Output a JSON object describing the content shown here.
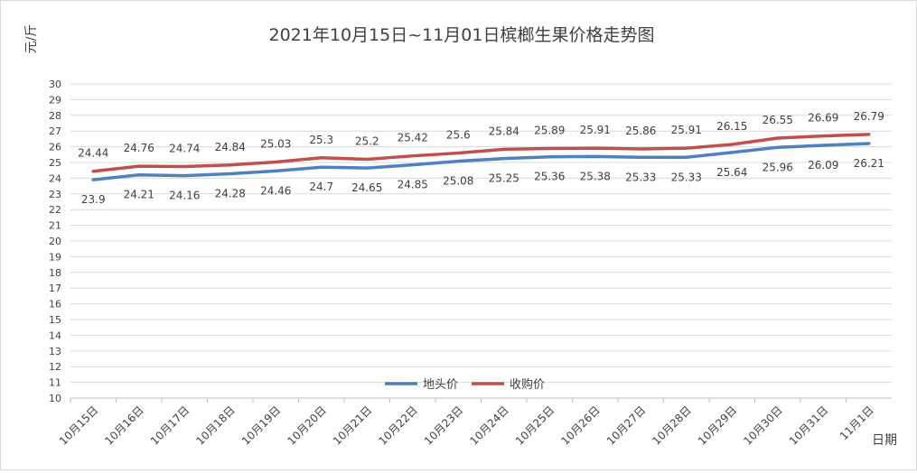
{
  "chart_data": {
    "type": "line",
    "title": "2021年10月15日~11月01日槟榔生果价格走势图",
    "ylabel": "元/斤",
    "xlabel": "日期",
    "ylim": [
      10,
      30
    ],
    "ytick_step": 1,
    "grid": true,
    "legend_position": "bottom-center",
    "categories": [
      "10月15日",
      "10月16日",
      "10月17日",
      "10月18日",
      "10月19日",
      "10月20日",
      "10月21日",
      "10月22日",
      "10月23日",
      "10月24日",
      "10月25日",
      "10月26日",
      "10月27日",
      "10月28日",
      "10月29日",
      "10月30日",
      "10月31日",
      "11月1日"
    ],
    "series": [
      {
        "name": "地头价",
        "color": "#4f81bd",
        "label_position": "below",
        "values": [
          23.9,
          24.21,
          24.16,
          24.28,
          24.46,
          24.7,
          24.65,
          24.85,
          25.08,
          25.25,
          25.36,
          25.38,
          25.33,
          25.33,
          25.64,
          25.96,
          26.09,
          26.21
        ]
      },
      {
        "name": "收购价",
        "color": "#c0504d",
        "label_position": "above",
        "values": [
          24.44,
          24.76,
          24.74,
          24.84,
          25.03,
          25.3,
          25.2,
          25.42,
          25.6,
          25.84,
          25.89,
          25.91,
          25.86,
          25.91,
          26.15,
          26.55,
          26.69,
          26.79
        ]
      }
    ]
  }
}
